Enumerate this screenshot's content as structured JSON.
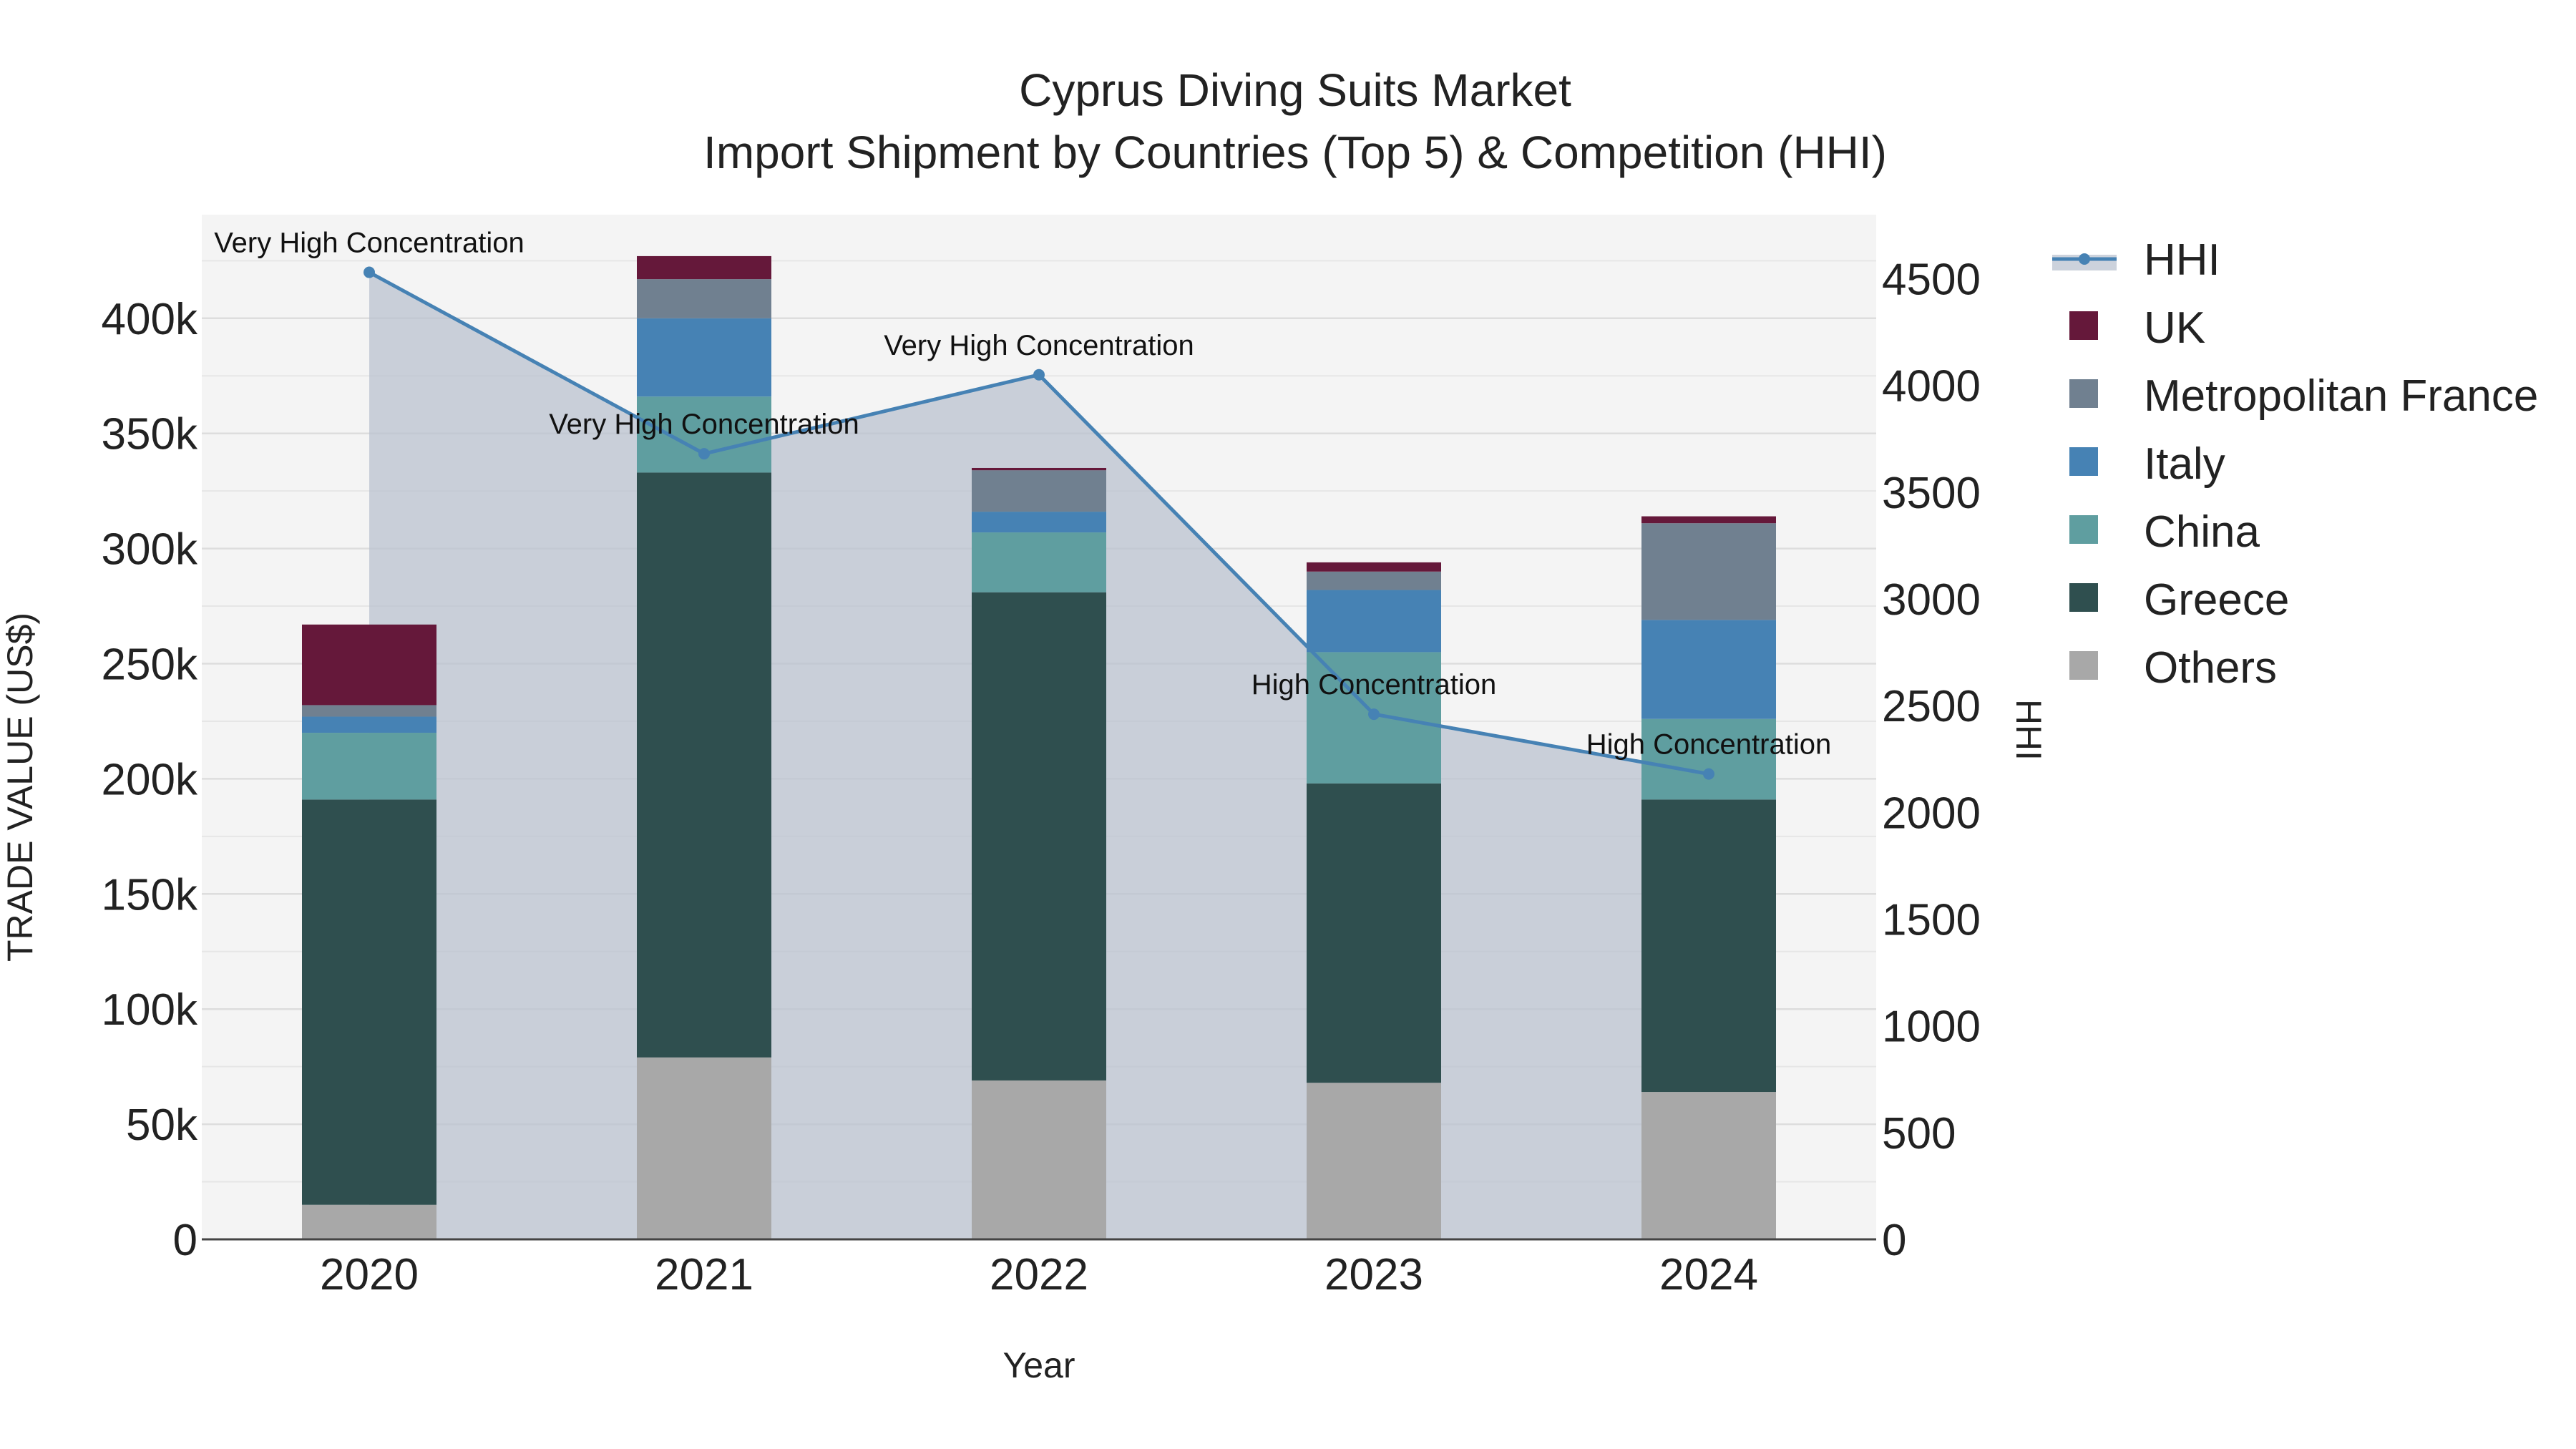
{
  "chart_data": {
    "type": "bar",
    "title": "Cyprus Diving Suits Market",
    "subtitle": "Import Shipment by Countries (Top 5) & Competition (HHI)",
    "xlabel": "Year",
    "ylabel": "TRADE VALUE (US$)",
    "y2label": "HHI",
    "categories": [
      "2020",
      "2021",
      "2022",
      "2023",
      "2024"
    ],
    "ylim": [
      0,
      445000
    ],
    "y2lim": [
      0,
      4800
    ],
    "yticks": [
      0,
      50000,
      100000,
      150000,
      200000,
      250000,
      300000,
      350000,
      400000
    ],
    "ytick_labels": [
      "0",
      "50k",
      "100k",
      "150k",
      "200k",
      "250k",
      "300k",
      "350k",
      "400k"
    ],
    "y2ticks": [
      0,
      500,
      1000,
      1500,
      2000,
      2500,
      3000,
      3500,
      4000,
      4500
    ],
    "y2tick_labels": [
      "0",
      "500",
      "1000",
      "1500",
      "2000",
      "2500",
      "3000",
      "3500",
      "4000",
      "4500"
    ],
    "series": [
      {
        "name": "Others",
        "color": "#a8a8a8",
        "values": [
          15000,
          79000,
          69000,
          68000,
          64000
        ]
      },
      {
        "name": "Greece",
        "color": "#2f4f4f",
        "values": [
          176000,
          254000,
          212000,
          130000,
          127000
        ]
      },
      {
        "name": "China",
        "color": "#5f9ea0",
        "values": [
          29000,
          33000,
          26000,
          57000,
          35000
        ]
      },
      {
        "name": "Italy",
        "color": "#4682b4",
        "values": [
          7000,
          34000,
          9000,
          27000,
          43000
        ]
      },
      {
        "name": "Metropolitan France",
        "color": "#708090",
        "values": [
          5000,
          17000,
          18000,
          8000,
          42000
        ]
      },
      {
        "name": "UK",
        "color": "#65183a",
        "values": [
          35000,
          10000,
          1000,
          4000,
          3000
        ]
      }
    ],
    "hhi": {
      "name": "HHI",
      "color": "#4682b4",
      "values": [
        4530,
        3680,
        4050,
        2460,
        2180
      ],
      "labels": [
        "Very High Concentration",
        "Very High Concentration",
        "Very High Concentration",
        "High Concentration",
        "High Concentration"
      ]
    },
    "legend": [
      "HHI",
      "UK",
      "Metropolitan France",
      "Italy",
      "China",
      "Greece",
      "Others"
    ],
    "legend_position": "right"
  }
}
